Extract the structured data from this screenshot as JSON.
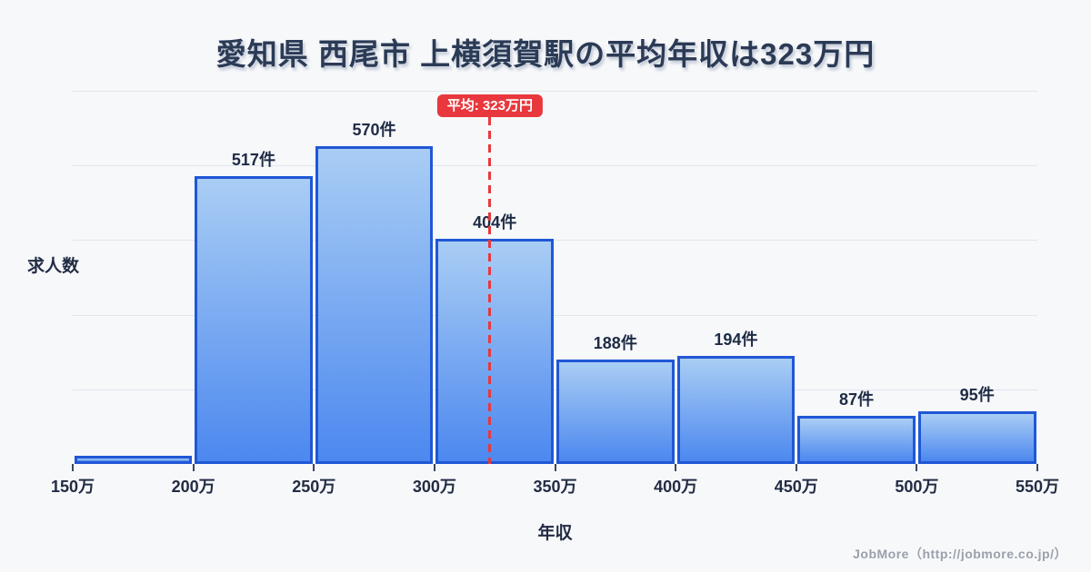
{
  "header": {
    "title": "愛知県 西尾市 上横須賀駅の平均年収は323万円"
  },
  "chart_data": {
    "type": "bar",
    "title": "愛知県 西尾市 上横須賀駅の平均年収は323万円",
    "xlabel": "年収",
    "ylabel": "求人数",
    "x_edges": [
      150,
      200,
      250,
      300,
      350,
      400,
      450,
      500,
      550
    ],
    "x_tick_labels": [
      "150万",
      "200万",
      "250万",
      "300万",
      "350万",
      "400万",
      "450万",
      "500万",
      "550万"
    ],
    "values": [
      14,
      517,
      570,
      404,
      188,
      194,
      87,
      95
    ],
    "bar_labels": [
      "",
      "517件",
      "570件",
      "404件",
      "188件",
      "194件",
      "87件",
      "95件"
    ],
    "ylim": [
      0,
      670
    ],
    "grid_divisions": 5,
    "grid_on": true,
    "average": {
      "value": 323,
      "badge_label": "平均: 323万円"
    },
    "colors": {
      "background": "#f7f8fa",
      "bar_fill_top": "#a9cdf4",
      "bar_fill_bottom": "#4c88ef",
      "bar_border": "#2057d6",
      "average_red": "#e8383d",
      "title_text": "#2b3a55",
      "label_text": "#1e2b45",
      "axis_text": "#222c44",
      "gridline": "#e1e5ef",
      "footer_text": "#9aa1ab"
    }
  },
  "footer": {
    "credit": "JobMore（http://jobmore.co.jp/）"
  }
}
